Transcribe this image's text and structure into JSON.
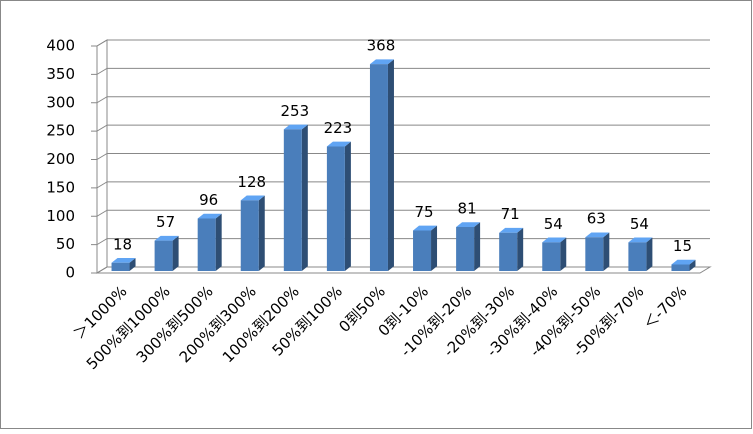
{
  "chart_data": {
    "type": "bar3d",
    "categories": [
      "＞1000%",
      "500%到1000%",
      "300%到500%",
      "200%到300%",
      "100%到200%",
      "50%到100%",
      "0到50%",
      "0到-10%",
      "-10%到-20%",
      "-20%到-30%",
      "-30%到-40%",
      "-40%到-50%",
      "-50%到-70%",
      "＜-70%"
    ],
    "values": [
      18,
      57,
      96,
      128,
      253,
      223,
      368,
      75,
      81,
      71,
      54,
      63,
      54,
      15
    ],
    "color": "#4a7ebb",
    "ylim": [
      0,
      400
    ],
    "yticks": [
      0,
      50,
      100,
      150,
      200,
      250,
      300,
      350,
      400
    ],
    "grid": true
  }
}
